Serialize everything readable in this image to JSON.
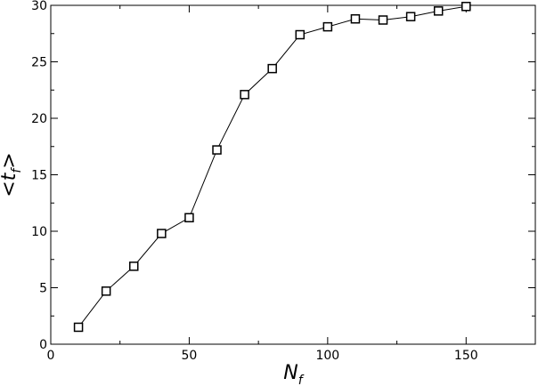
{
  "chart_data": {
    "type": "scatter",
    "xlabel": "N",
    "xlabel_sub": "f",
    "ylabel_open": "<t",
    "ylabel_sub": "f",
    "ylabel_close": ">",
    "xlim": [
      0,
      175
    ],
    "ylim": [
      0,
      30
    ],
    "xticks": [
      0,
      50,
      100,
      150
    ],
    "yticks": [
      0,
      5,
      10,
      15,
      20,
      25,
      30
    ],
    "grid": false,
    "marker": "open-square",
    "line": "solid",
    "series": [
      {
        "x": [
          10,
          20,
          30,
          40,
          50,
          60,
          70,
          80,
          90,
          100,
          110,
          120,
          130,
          140,
          150
        ],
        "y": [
          1.5,
          4.7,
          6.9,
          9.8,
          11.2,
          17.2,
          22.1,
          24.4,
          27.4,
          28.1,
          28.8,
          28.7,
          29.0,
          29.5,
          29.9
        ]
      }
    ]
  }
}
